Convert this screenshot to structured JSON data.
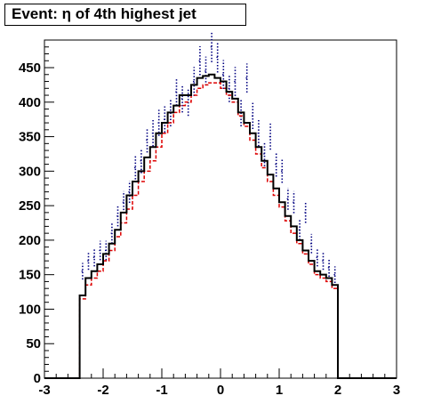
{
  "chart_data": {
    "type": "step-histogram",
    "title": "Event: η of 4th highest jet",
    "xlabel": "",
    "ylabel": "",
    "xlim": [
      -3,
      3
    ],
    "ylim": [
      0,
      490
    ],
    "x_ticks": [
      -3,
      -2,
      -1,
      0,
      1,
      2,
      3
    ],
    "y_ticks": [
      0,
      50,
      100,
      150,
      200,
      250,
      300,
      350,
      400,
      450
    ],
    "grid": false,
    "bin_width": 0.1,
    "bin_start": -2.4,
    "series": [
      {
        "style": "solid-step",
        "color": "#000000",
        "values": [
          120,
          145,
          155,
          165,
          180,
          195,
          215,
          240,
          265,
          285,
          300,
          320,
          335,
          355,
          370,
          385,
          395,
          410,
          410,
          425,
          435,
          438,
          440,
          435,
          430,
          415,
          405,
          385,
          370,
          355,
          335,
          315,
          295,
          275,
          255,
          235,
          220,
          200,
          185,
          170,
          155,
          150,
          145,
          135
        ]
      },
      {
        "style": "dashed-step",
        "color": "#dd0000",
        "values": [
          115,
          135,
          145,
          155,
          170,
          185,
          205,
          225,
          245,
          265,
          285,
          300,
          315,
          335,
          355,
          370,
          385,
          395,
          400,
          410,
          420,
          425,
          428,
          428,
          420,
          410,
          400,
          380,
          365,
          345,
          325,
          305,
          285,
          265,
          248,
          228,
          210,
          195,
          180,
          165,
          150,
          145,
          140,
          130
        ]
      },
      {
        "style": "points-errorbars",
        "color": "#000080",
        "values": [
          155,
          170,
          175,
          185,
          185,
          210,
          235,
          255,
          270,
          305,
          315,
          345,
          355,
          370,
          375,
          385,
          415,
          405,
          400,
          430,
          460,
          445,
          480,
          465,
          440,
          420,
          430,
          385,
          435,
          380,
          355,
          325,
          350,
          310,
          300,
          260,
          255,
          215,
          240,
          195,
          175,
          170,
          160,
          150
        ],
        "errors": [
          12,
          13,
          13,
          14,
          14,
          15,
          15,
          16,
          16,
          17,
          18,
          18,
          19,
          19,
          19,
          20,
          20,
          20,
          20,
          21,
          21,
          21,
          22,
          22,
          21,
          20,
          21,
          20,
          21,
          19,
          19,
          18,
          19,
          18,
          17,
          16,
          16,
          15,
          15,
          14,
          13,
          13,
          13,
          12
        ]
      }
    ]
  }
}
